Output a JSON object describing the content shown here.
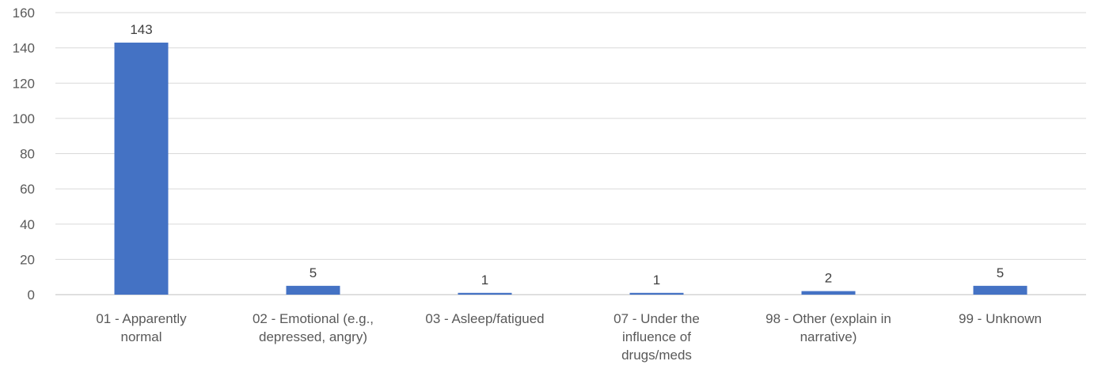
{
  "chart_data": {
    "type": "bar",
    "categories": [
      [
        "01 - Apparently",
        "normal"
      ],
      [
        "02 - Emotional (e.g.,",
        "depressed, angry)"
      ],
      [
        "03 - Asleep/fatigued"
      ],
      [
        "07 - Under the",
        "influence of",
        "drugs/meds"
      ],
      [
        "98 - Other (explain in",
        "narrative)"
      ],
      [
        "99 - Unknown"
      ]
    ],
    "values": [
      143,
      5,
      1,
      1,
      2,
      5
    ],
    "ylim": [
      0,
      160
    ],
    "yticks": [
      0,
      20,
      40,
      60,
      80,
      100,
      120,
      140,
      160
    ],
    "grid": true,
    "legend": "none",
    "data_labels": true,
    "colors": {
      "bar": "#4472C4",
      "grid": "#D9D9D9",
      "axis": "#BFBFBF"
    }
  }
}
